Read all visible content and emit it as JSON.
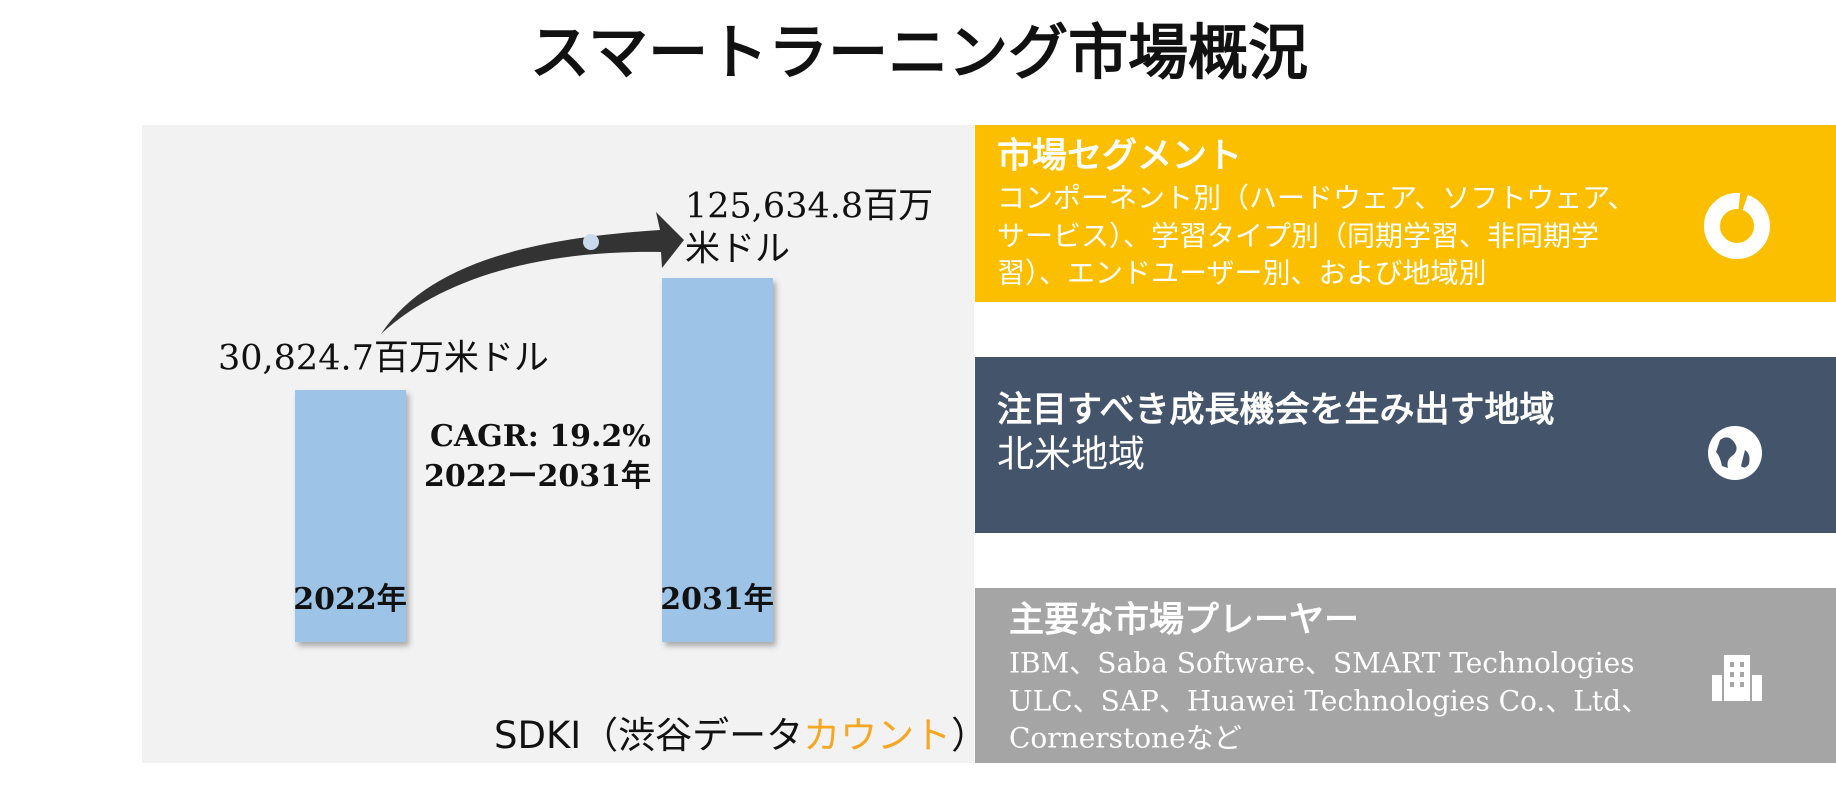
{
  "title": "スマートラーニング市場概況",
  "chart": {
    "bars": [
      {
        "category": "2022年",
        "value_label": "30,824.7百万米ドル"
      },
      {
        "category": "2031年",
        "value_label_lines": [
          "125,634.8百万",
          "米ドル"
        ]
      }
    ],
    "cagr": "CAGR: 19.2%",
    "period": "2022ー2031年"
  },
  "source": {
    "prefix": "SDKI（渋谷データ",
    "highlight": "カウント",
    "suffix": "）"
  },
  "panels": [
    {
      "heading": "市場セグメント",
      "lines": [
        "コンポーネント別（ハードウェア、ソフトウェア、",
        "サービス）、学習タイプ別（同期学習、非同期学",
        "習）、エンドユーザー別、および地域別"
      ]
    },
    {
      "heading": "注目すべき成長機会を生み出す地域",
      "lines": [
        "北米地域"
      ]
    },
    {
      "heading": "主要な市場プレーヤー",
      "lines": [
        "IBM、Saba Software、SMART Technologies",
        "ULC、SAP、Huawei Technologies Co.、Ltd、",
        "Cornerstoneなど"
      ]
    }
  ]
}
